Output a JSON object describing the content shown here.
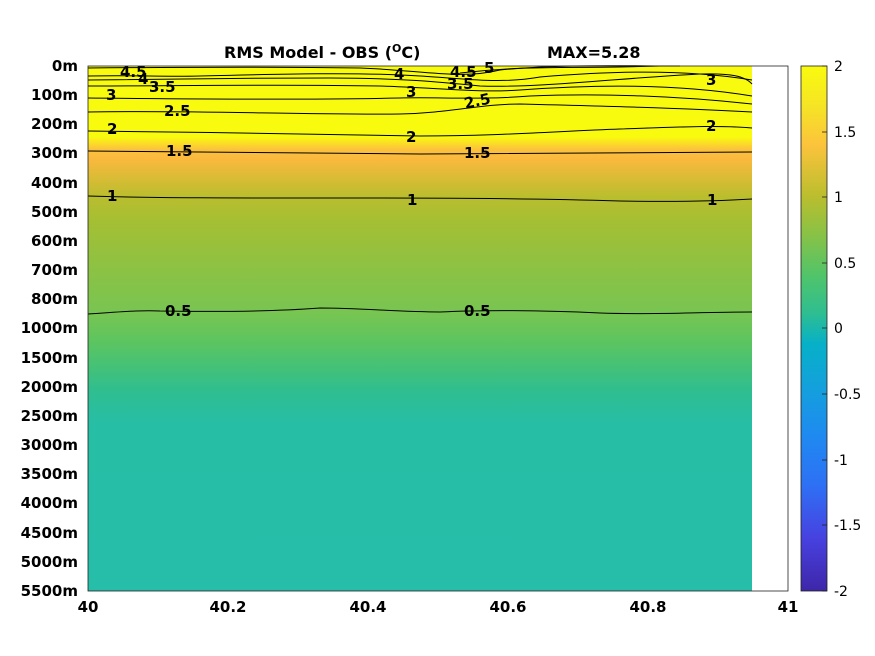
{
  "chart_data": {
    "type": "contour",
    "title": "RMS Model - OBS (",
    "title_unit": "O",
    "title_unit_suffix": "C)",
    "max_label": "MAX=5.28",
    "x_ticks": [
      "40",
      "40.2",
      "40.4",
      "40.6",
      "40.8",
      "41"
    ],
    "xlim": [
      40,
      41
    ],
    "data_x_max": 40.95,
    "y_ticks": [
      "0m",
      "100m",
      "200m",
      "300m",
      "400m",
      "500m",
      "600m",
      "700m",
      "800m",
      "1000m",
      "1500m",
      "2000m",
      "2500m",
      "3000m",
      "3500m",
      "4000m",
      "4500m",
      "5000m",
      "5500m"
    ],
    "colorbar": {
      "ticks": [
        "2",
        "1.5",
        "1",
        "0.5",
        "0",
        "-0.5",
        "-1",
        "-1.5",
        "-2"
      ],
      "range": [
        -2,
        2
      ],
      "colormap": "parula"
    },
    "depth_profile": [
      {
        "depth": "0m",
        "value": 4.8
      },
      {
        "depth": "100m",
        "value": 3.0
      },
      {
        "depth": "200m",
        "value": 2.0
      },
      {
        "depth": "300m",
        "value": 1.5
      },
      {
        "depth": "400m",
        "value": 1.15
      },
      {
        "depth": "500m",
        "value": 0.95
      },
      {
        "depth": "600m",
        "value": 0.8
      },
      {
        "depth": "700m",
        "value": 0.68
      },
      {
        "depth": "800m",
        "value": 0.58
      },
      {
        "depth": "1000m",
        "value": 0.45
      },
      {
        "depth": "1500m",
        "value": 0.32
      },
      {
        "depth": "2000m",
        "value": 0.26
      },
      {
        "depth": "2500m",
        "value": 0.25
      },
      {
        "depth": "3000m",
        "value": 0.25
      },
      {
        "depth": "3500m",
        "value": 0.25
      },
      {
        "depth": "4000m",
        "value": 0.25
      },
      {
        "depth": "4500m",
        "value": 0.25
      },
      {
        "depth": "5000m",
        "value": 0.25
      },
      {
        "depth": "5500m",
        "value": 0.25
      }
    ],
    "contour_levels": [
      "5",
      "4.5",
      "4",
      "3.5",
      "3",
      "2.5",
      "2",
      "1.5",
      "1",
      "0.5"
    ]
  }
}
